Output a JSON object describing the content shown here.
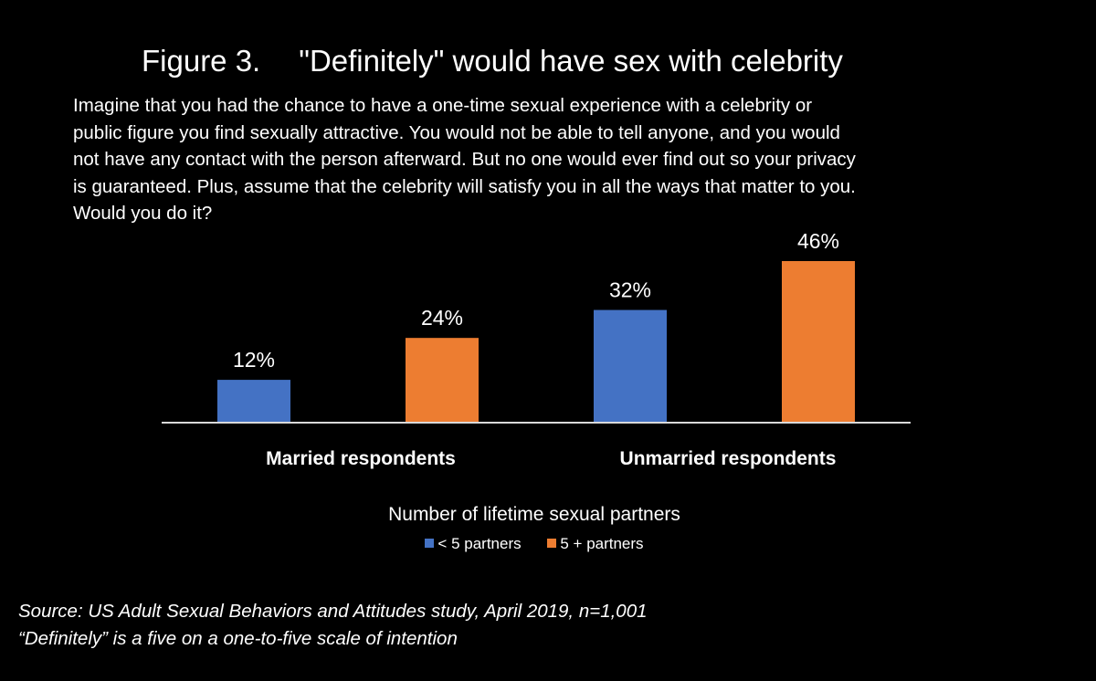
{
  "title": {
    "figure": "Figure 3.",
    "text": "\"Definitely\" would have sex with celebrity"
  },
  "question_lines": [
    "Imagine that you had the chance to have a one-time  sexual experience with a celebrity or",
    "public figure you find sexually attractive. You would not be able to tell anyone, and you would",
    "not have any contact with the person afterward. But no one would ever find out so your privacy",
    "is guaranteed. Plus, assume that the celebrity will satisfy you in all the ways that matter to you.",
    "Would you do it?"
  ],
  "chart_data": {
    "type": "bar",
    "title": "\"Definitely\" would have sex with celebrity",
    "categories": [
      "Married respondents",
      "Unmarried respondents"
    ],
    "series": [
      {
        "name": "< 5 partners",
        "values": [
          12,
          32
        ],
        "labels": [
          "12%",
          "32%"
        ],
        "color": "#4472C4"
      },
      {
        "name": "5 + partners",
        "values": [
          24,
          46
        ],
        "labels": [
          "24%",
          "46%"
        ],
        "color": "#ED7D31"
      }
    ],
    "ylim": [
      0,
      46
    ],
    "grid": false,
    "legend_title": "Number of lifetime sexual partners",
    "legend_position": "bottom-center"
  },
  "source": {
    "line1": "Source: US Adult Sexual Behaviors and Attitudes study, April 2019, n=1,001",
    "line2": "“Definitely” is a five on a one-to-five scale of intention"
  }
}
